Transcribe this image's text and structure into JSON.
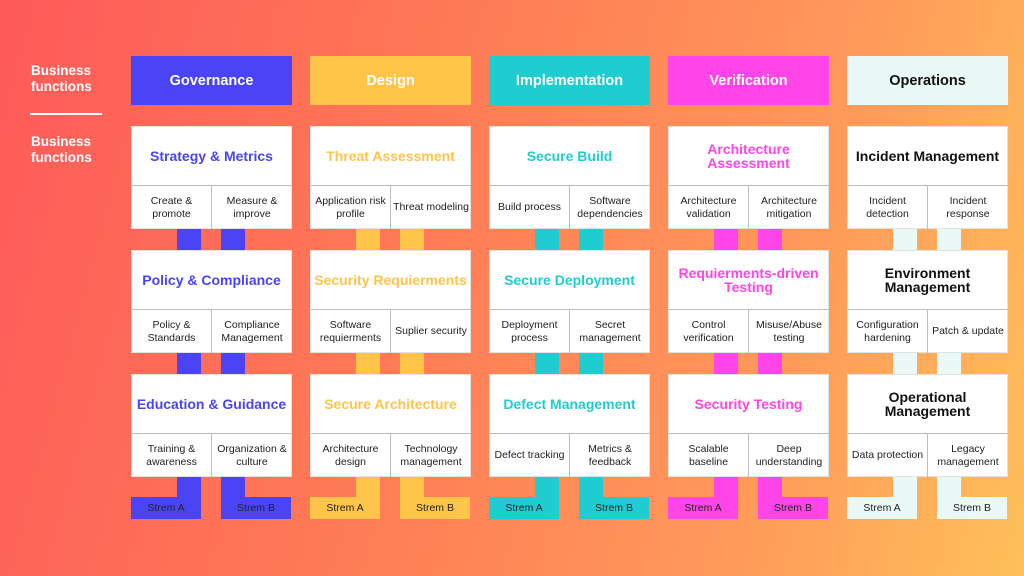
{
  "sidebar": {
    "label_top": "Business functions",
    "label_bottom": "Business functions"
  },
  "columns": [
    {
      "header": "Governance",
      "color": "#4a44f5",
      "header_text_color": "#ffffff",
      "title_color": "#4a44f5",
      "practices": [
        {
          "title": "Strategy & Metrics",
          "a": "Create & promote",
          "b": "Measure & improve"
        },
        {
          "title": "Policy & Compliance",
          "a": "Policy & Standards",
          "b": "Compliance Management"
        },
        {
          "title": "Education & Guidance",
          "a": "Training & awareness",
          "b": "Organization & culture"
        }
      ],
      "stream_a": "Strem A",
      "stream_b": "Strem B"
    },
    {
      "header": "Design",
      "color": "#ffc44a",
      "header_text_color": "#ffffff",
      "title_color": "#ffc44a",
      "practices": [
        {
          "title": "Threat Assessment",
          "a": "Application risk profile",
          "b": "Threat modeling"
        },
        {
          "title": "Security Requierments",
          "a": "Software requierments",
          "b": "Suplier security"
        },
        {
          "title": "Secure Architecture",
          "a": "Architecture design",
          "b": "Technology management"
        }
      ],
      "stream_a": "Strem A",
      "stream_b": "Strem B"
    },
    {
      "header": "Implementation",
      "color": "#1fcdd0",
      "header_text_color": "#ffffff",
      "title_color": "#1fcdd0",
      "practices": [
        {
          "title": "Secure Build",
          "a": "Build process",
          "b": "Software dependencies"
        },
        {
          "title": "Secure Deployment",
          "a": "Deployment process",
          "b": "Secret management"
        },
        {
          "title": "Defect Management",
          "a": "Defect tracking",
          "b": "Metrics & feedback"
        }
      ],
      "stream_a": "Strem A",
      "stream_b": "Strem B"
    },
    {
      "header": "Verification",
      "color": "#ff45e8",
      "header_text_color": "#ffffff",
      "title_color": "#ff45e8",
      "practices": [
        {
          "title": "Architecture Assessment",
          "a": "Architecture validation",
          "b": "Architecture mitigation"
        },
        {
          "title": "Requierments-driven Testing",
          "a": "Control verification",
          "b": "Misuse/Abuse testing"
        },
        {
          "title": "Security Testing",
          "a": "Scalable baseline",
          "b": "Deep understanding"
        }
      ],
      "stream_a": "Strem A",
      "stream_b": "Strem B"
    },
    {
      "header": "Operations",
      "color": "#eaf8f6",
      "header_text_color": "#111111",
      "title_color": "#111111",
      "practices": [
        {
          "title": "Incident Management",
          "a": "Incident detection",
          "b": "Incident response"
        },
        {
          "title": "Environment Management",
          "a": "Configuration hardening",
          "b": "Patch & update"
        },
        {
          "title": "Operational Management",
          "a": "Data protection",
          "b": "Legacy management"
        }
      ],
      "stream_a": "Strem A",
      "stream_b": "Strem B"
    }
  ]
}
